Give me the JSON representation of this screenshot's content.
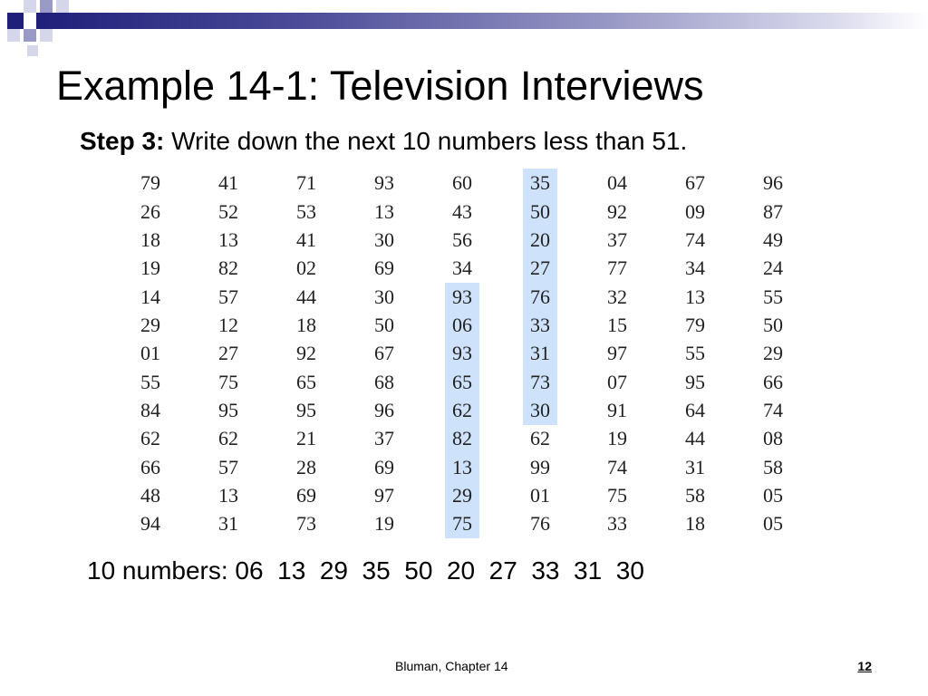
{
  "slide": {
    "title": "Example 14-1: Television Interviews",
    "step_label": "Step 3:",
    "step_text": " Write down the next 10 numbers less than 51.",
    "result_label": "10 numbers:",
    "result_numbers": [
      "06",
      "13",
      "29",
      "35",
      "50",
      "20",
      "27",
      "33",
      "31",
      "30"
    ],
    "footer": "Bluman, Chapter 14",
    "page_number": "12"
  },
  "table": {
    "rows": [
      [
        "79",
        "41",
        "71",
        "93",
        "60",
        "35",
        "04",
        "67",
        "96"
      ],
      [
        "26",
        "52",
        "53",
        "13",
        "43",
        "50",
        "92",
        "09",
        "87"
      ],
      [
        "18",
        "13",
        "41",
        "30",
        "56",
        "20",
        "37",
        "74",
        "49"
      ],
      [
        "19",
        "82",
        "02",
        "69",
        "34",
        "27",
        "77",
        "34",
        "24"
      ],
      [
        "14",
        "57",
        "44",
        "30",
        "93",
        "76",
        "32",
        "13",
        "55"
      ],
      [
        "29",
        "12",
        "18",
        "50",
        "06",
        "33",
        "15",
        "79",
        "50"
      ],
      [
        "01",
        "27",
        "92",
        "67",
        "93",
        "31",
        "97",
        "55",
        "29"
      ],
      [
        "55",
        "75",
        "65",
        "68",
        "65",
        "73",
        "07",
        "95",
        "66"
      ],
      [
        "84",
        "95",
        "95",
        "96",
        "62",
        "30",
        "91",
        "64",
        "74"
      ],
      [
        "62",
        "62",
        "21",
        "37",
        "82",
        "62",
        "19",
        "44",
        "08"
      ],
      [
        "66",
        "57",
        "28",
        "69",
        "13",
        "99",
        "74",
        "31",
        "58"
      ],
      [
        "48",
        "13",
        "69",
        "97",
        "29",
        "01",
        "75",
        "58",
        "05"
      ],
      [
        "94",
        "31",
        "73",
        "19",
        "75",
        "76",
        "33",
        "18",
        "05"
      ]
    ],
    "highlights": [
      {
        "column": 5,
        "from_row": 4,
        "to_row": 12
      },
      {
        "column": 6,
        "from_row": 0,
        "to_row": 8
      }
    ],
    "highlight_color": "#cfe2fb"
  },
  "theme": {
    "dark_square": "#1f1f7a",
    "mid_square": "#9a9ac6",
    "light_square": "#d6d6ea"
  }
}
